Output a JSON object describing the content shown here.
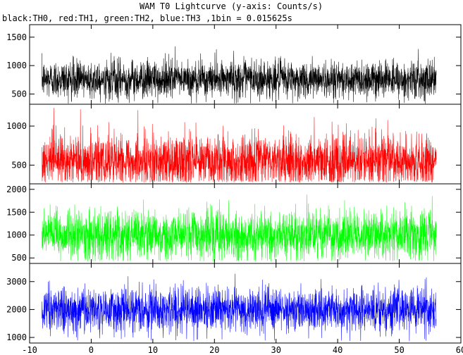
{
  "chart_data": {
    "type": "line",
    "title": "WAM T0 Lightcurve (y-axis: Counts/s)",
    "subtitle": "black:TH0, red:TH1, green:TH2, blue:TH3 ,1bin = 0.015625s",
    "xlabel": "",
    "ylabel": "",
    "grid": false,
    "x_ticks": [
      -10,
      0,
      10,
      20,
      30,
      40,
      50,
      60
    ],
    "xlim": [
      -10,
      60
    ],
    "series_x_range": [
      -8.0,
      56.0
    ],
    "bin_size": 0.015625,
    "panels": [
      {
        "name": "TH0",
        "color": "#000000",
        "ylim": [
          320,
          1720
        ],
        "yticks": [
          500,
          1000,
          1500
        ],
        "mean": 760,
        "std": 165,
        "min": 330,
        "max": 1620
      },
      {
        "name": "TH1",
        "color": "#ff0000",
        "ylim": [
          260,
          1280
        ],
        "yticks": [
          500,
          1000
        ],
        "mean": 545,
        "std": 175,
        "min": 280,
        "max": 1240
      },
      {
        "name": "TH2",
        "color": "#00ff00",
        "ylim": [
          380,
          2120
        ],
        "yticks": [
          500,
          1000,
          1500,
          2000
        ],
        "mean": 1000,
        "std": 260,
        "min": 430,
        "max": 2080
      },
      {
        "name": "TH3",
        "color": "#0000ff",
        "ylim": [
          800,
          3650
        ],
        "yticks": [
          1000,
          2000,
          3000
        ],
        "mean": 1990,
        "std": 390,
        "min": 870,
        "max": 3560
      }
    ]
  }
}
